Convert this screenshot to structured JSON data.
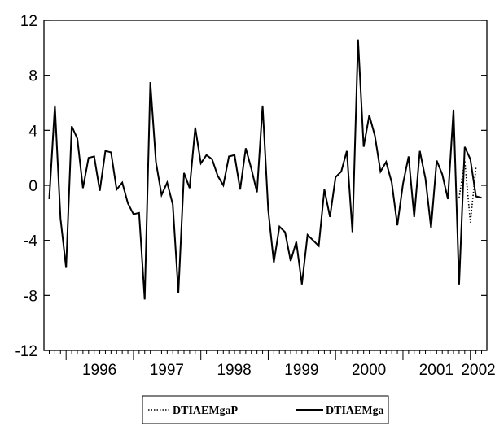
{
  "chart_data": {
    "type": "line",
    "title": "",
    "xlabel": "",
    "ylabel": "",
    "ylim": [
      -12,
      12
    ],
    "yticks": [
      -12,
      -8,
      -4,
      0,
      4,
      8,
      12
    ],
    "ytick_labels": [
      "-12",
      "-8",
      "-4",
      "0",
      "4",
      "8",
      "12"
    ],
    "x_start": "1995-10",
    "x_end": "2002-03",
    "xtick_labels": [
      "1996",
      "1997",
      "1998",
      "1999",
      "2000",
      "2001",
      "2002"
    ],
    "legend_position": "bottom-center",
    "grid": false,
    "series": [
      {
        "name": "DTIAEMgaP",
        "style": "dotted",
        "color": "#000000",
        "start": "2001-11",
        "values": [
          -0.9,
          1.8,
          -2.7,
          1.3
        ]
      },
      {
        "name": "DTIAEMga",
        "style": "solid",
        "color": "#000000",
        "start": "1995-10",
        "values": [
          -1.0,
          5.8,
          -2.4,
          -6.0,
          4.3,
          3.4,
          -0.2,
          2.0,
          2.1,
          -0.4,
          2.5,
          2.4,
          -0.3,
          0.2,
          -1.3,
          -2.1,
          -2.0,
          -8.3,
          7.5,
          1.7,
          -0.7,
          0.2,
          -1.4,
          -7.8,
          0.9,
          -0.2,
          4.2,
          1.6,
          2.2,
          1.9,
          0.7,
          0.0,
          2.1,
          2.2,
          -0.3,
          2.7,
          1.2,
          -0.5,
          5.8,
          -1.8,
          -5.6,
          -3.0,
          -3.4,
          -5.5,
          -4.1,
          -7.2,
          -3.6,
          -4.0,
          -4.4,
          -0.3,
          -2.3,
          0.6,
          1.0,
          2.5,
          -3.4,
          10.6,
          2.8,
          5.1,
          3.6,
          1.0,
          1.7,
          0.2,
          -2.9,
          0.1,
          2.1,
          -2.3,
          2.5,
          0.5,
          -3.1,
          1.8,
          0.8,
          -1.0,
          5.5,
          -7.2,
          2.8,
          1.9,
          -0.8,
          -0.9
        ]
      }
    ]
  }
}
